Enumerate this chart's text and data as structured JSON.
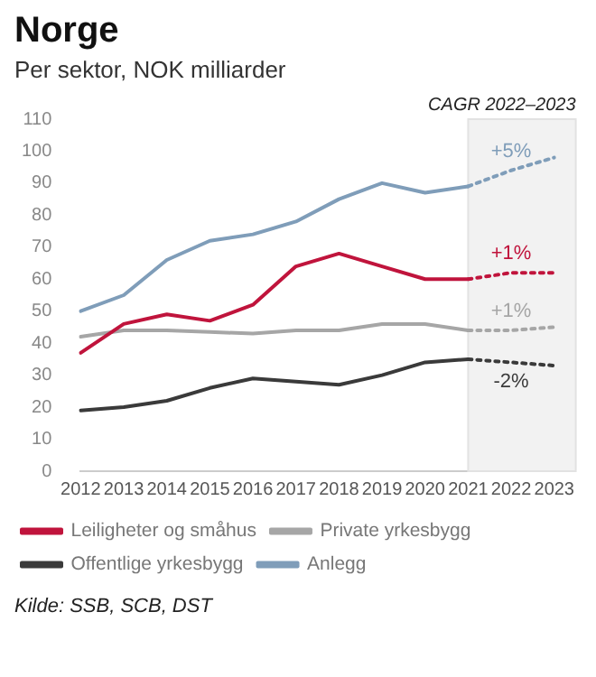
{
  "chart_data": {
    "type": "line",
    "title": "Norge",
    "subtitle": "Per sektor, NOK milliarder",
    "categories": [
      "2012",
      "2013",
      "2014",
      "2015",
      "2016",
      "2017",
      "2018",
      "2019",
      "2020",
      "2021",
      "2022",
      "2023"
    ],
    "series": [
      {
        "name": "Leiligheter og småhus",
        "color": "#c0143c",
        "values": [
          37,
          46,
          49,
          47,
          52,
          64,
          68,
          64,
          60,
          60,
          null,
          null
        ]
      },
      {
        "name": "Private yrkesbygg",
        "color": "#a6a6a6",
        "values": [
          42,
          44,
          44,
          43.5,
          43,
          44,
          44,
          46,
          46,
          44,
          null,
          null
        ]
      },
      {
        "name": "Offentlige yrkesbygg",
        "color": "#3a3a3a",
        "values": [
          19,
          20,
          22,
          26,
          29,
          28,
          27,
          30,
          34,
          35,
          null,
          null
        ]
      },
      {
        "name": "Anlegg",
        "color": "#7f9db9",
        "values": [
          50,
          55,
          66,
          72,
          74,
          78,
          85,
          90,
          87,
          89,
          null,
          null
        ]
      },
      {
        "color": "#c0143c",
        "line_style": "dotted",
        "values": [
          null,
          null,
          null,
          null,
          null,
          null,
          null,
          null,
          null,
          60,
          62,
          62
        ]
      },
      {
        "color": "#a6a6a6",
        "line_style": "dotted",
        "values": [
          null,
          null,
          null,
          null,
          null,
          null,
          null,
          null,
          null,
          44,
          44,
          45
        ]
      },
      {
        "color": "#3a3a3a",
        "line_style": "dotted",
        "values": [
          null,
          null,
          null,
          null,
          null,
          null,
          null,
          null,
          null,
          35,
          34,
          33
        ]
      },
      {
        "color": "#7f9db9",
        "line_style": "dotted",
        "values": [
          null,
          null,
          null,
          null,
          null,
          null,
          null,
          null,
          null,
          89,
          94,
          98
        ]
      }
    ],
    "ylim": [
      0,
      110
    ],
    "yticks": [
      0,
      10,
      20,
      30,
      40,
      50,
      60,
      70,
      80,
      90,
      100,
      110
    ],
    "bands": [
      {
        "axis": "x",
        "from": "2021",
        "to": "2023",
        "label": "CAGR 2022–2023",
        "color": "#f2f2f2"
      }
    ],
    "grid": false,
    "legend": "bottom",
    "marker": "none",
    "line_style": "solid",
    "annotations": [
      {
        "text": "+5%",
        "x": "2022",
        "y": 94
      },
      {
        "text": "+1%",
        "x": "2022",
        "y": 62
      },
      {
        "text": "+1%",
        "x": "2022",
        "y": 44
      },
      {
        "text": "-2%",
        "x": "2022",
        "y": 34
      },
      "Kilde: SSB, SCB, DST"
    ]
  }
}
